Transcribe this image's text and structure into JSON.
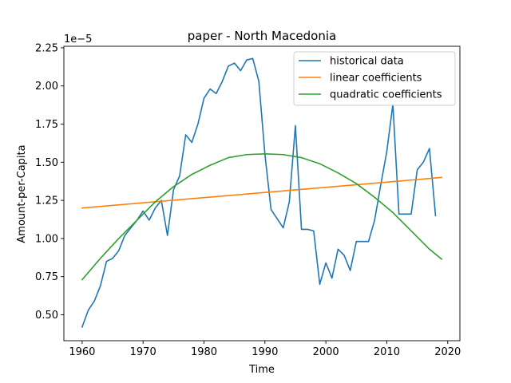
{
  "chart_data": {
    "type": "line",
    "title": "paper - North Macedonia",
    "xlabel": "Time",
    "ylabel": "Amount-per-Capita",
    "y_offset_label": "1e−5",
    "y_scale_factor": 1e-05,
    "xlim": [
      1957,
      2022
    ],
    "ylim": [
      0.33,
      2.26
    ],
    "x_ticks": [
      1960,
      1970,
      1980,
      1990,
      2000,
      2010,
      2020
    ],
    "x_tick_labels": [
      "1960",
      "1970",
      "1980",
      "1990",
      "2000",
      "2010",
      "2020"
    ],
    "y_ticks": [
      0.5,
      0.75,
      1.0,
      1.25,
      1.5,
      1.75,
      2.0,
      2.25
    ],
    "y_tick_labels": [
      "0.50",
      "0.75",
      "1.00",
      "1.25",
      "1.50",
      "1.75",
      "2.00",
      "2.25"
    ],
    "grid": false,
    "legend_position": "top-right",
    "series": [
      {
        "name": "historical data",
        "color": "#1f77b4",
        "x": [
          1960,
          1961,
          1962,
          1963,
          1964,
          1965,
          1966,
          1967,
          1968,
          1969,
          1970,
          1971,
          1972,
          1973,
          1974,
          1975,
          1976,
          1977,
          1978,
          1979,
          1980,
          1981,
          1982,
          1983,
          1984,
          1985,
          1986,
          1987,
          1988,
          1989,
          1990,
          1991,
          1992,
          1993,
          1994,
          1995,
          1996,
          1997,
          1998,
          1999,
          2000,
          2001,
          2002,
          2003,
          2004,
          2005,
          2006,
          2007,
          2008,
          2009,
          2010,
          2011,
          2012,
          2013,
          2014,
          2015,
          2016,
          2017,
          2018
        ],
        "y": [
          0.42,
          0.53,
          0.59,
          0.69,
          0.85,
          0.87,
          0.92,
          1.02,
          1.07,
          1.12,
          1.18,
          1.12,
          1.2,
          1.25,
          1.02,
          1.32,
          1.41,
          1.68,
          1.63,
          1.75,
          1.92,
          1.98,
          1.95,
          2.03,
          2.13,
          2.15,
          2.1,
          2.17,
          2.18,
          2.03,
          1.55,
          1.19,
          1.13,
          1.07,
          1.24,
          1.74,
          1.06,
          1.06,
          1.05,
          0.7,
          0.84,
          0.74,
          0.93,
          0.89,
          0.79,
          0.98,
          0.98,
          0.98,
          1.12,
          1.35,
          1.57,
          1.88,
          1.16,
          1.16,
          1.16,
          1.45,
          1.5,
          1.59,
          1.15
        ]
      },
      {
        "name": "linear coefficients",
        "color": "#ff7f0e",
        "x": [
          1960,
          2019
        ],
        "y": [
          1.2,
          1.4
        ]
      },
      {
        "name": "quadratic coefficients",
        "color": "#2ca02c",
        "x": [
          1960,
          1963,
          1966,
          1969,
          1972,
          1975,
          1978,
          1981,
          1984,
          1987,
          1990,
          1993,
          1996,
          1999,
          2002,
          2005,
          2008,
          2011,
          2014,
          2017,
          2019
        ],
        "y": [
          0.73,
          0.87,
          1.0,
          1.12,
          1.24,
          1.34,
          1.42,
          1.48,
          1.53,
          1.55,
          1.555,
          1.55,
          1.53,
          1.49,
          1.43,
          1.36,
          1.27,
          1.17,
          1.05,
          0.93,
          0.865
        ]
      }
    ]
  }
}
